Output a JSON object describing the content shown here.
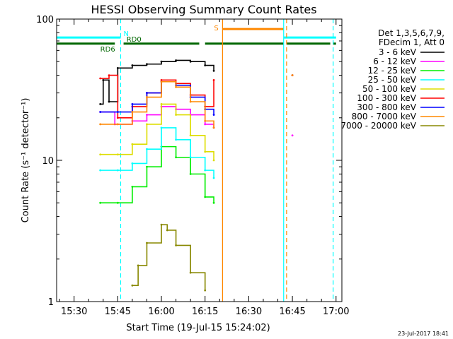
{
  "chart_data": {
    "type": "line",
    "title": "HESSI Observing Summary Count Rates",
    "xlabel": "Start Time (19-Jul-15 15:24:02)",
    "ylabel": "Count Rate (s⁻¹ detector⁻¹)",
    "y_scale": "log",
    "ylim": [
      1,
      100
    ],
    "xlim": [
      "15:24",
      "17:02"
    ],
    "x_ticks": [
      "15:30",
      "15:45",
      "16:00",
      "16:15",
      "16:30",
      "16:45",
      "17:00"
    ],
    "y_ticks": [
      "1",
      "10",
      "100"
    ],
    "grid": false,
    "legend_position": "right",
    "legend_header": [
      "Det 1,3,5,6,7,9,",
      "FDecim 1, Att 0"
    ],
    "timestamp": "23-Jul-2017 18:41",
    "series": [
      {
        "name": "3 - 6 keV",
        "color": "#000000",
        "x": [
          "15:39",
          "15:40",
          "15:42",
          "15:45",
          "15:50",
          "15:55",
          "16:00",
          "16:05",
          "16:10",
          "16:15",
          "16:18",
          "16:45"
        ],
        "y": [
          25,
          37,
          26,
          45,
          47,
          48,
          50,
          51,
          50,
          47,
          43,
          40
        ]
      },
      {
        "name": "6 - 12 keV",
        "color": "#ff00ff",
        "x": [
          "15:39",
          "15:44",
          "15:50",
          "15:55",
          "16:00",
          "16:05",
          "16:10",
          "16:15",
          "16:18",
          "16:45"
        ],
        "y": [
          22,
          18,
          19,
          21,
          24,
          23,
          21,
          18,
          17,
          15
        ]
      },
      {
        "name": "12 - 25 keV",
        "color": "#00ee00",
        "x": [
          "15:39",
          "15:45",
          "15:50",
          "15:55",
          "16:00",
          "16:05",
          "16:10",
          "16:15",
          "16:18"
        ],
        "y": [
          5.0,
          5.0,
          6.5,
          9.0,
          12.5,
          10.5,
          8.0,
          5.5,
          5.0
        ]
      },
      {
        "name": "25 - 50 keV",
        "color": "#00ffff",
        "x": [
          "15:39",
          "15:45",
          "15:50",
          "15:55",
          "16:00",
          "16:05",
          "16:10",
          "16:15",
          "16:18"
        ],
        "y": [
          8.5,
          8.5,
          9.5,
          12.0,
          17.0,
          14.0,
          10.5,
          8.5,
          7.5
        ]
      },
      {
        "name": "50 - 100 keV",
        "color": "#dddd00",
        "x": [
          "15:39",
          "15:45",
          "15:50",
          "15:55",
          "16:00",
          "16:05",
          "16:10",
          "16:15",
          "16:18"
        ],
        "y": [
          11.0,
          11.0,
          13.0,
          18.0,
          25.0,
          21.0,
          15.0,
          11.5,
          10.0
        ]
      },
      {
        "name": "100 - 300 keV",
        "color": "#ff0000",
        "x": [
          "15:39",
          "15:42",
          "15:45",
          "15:50",
          "15:55",
          "16:00",
          "16:05",
          "16:10",
          "16:15",
          "16:18",
          "16:45"
        ],
        "y": [
          38,
          40,
          20,
          24,
          30,
          37,
          35,
          29,
          24,
          37,
          40
        ]
      },
      {
        "name": "300 - 800 keV",
        "color": "#0000ff",
        "x": [
          "15:39",
          "15:45",
          "15:50",
          "15:55",
          "16:00",
          "16:05",
          "16:10",
          "16:15",
          "16:18"
        ],
        "y": [
          22,
          22,
          25,
          30,
          36,
          34,
          28,
          23,
          21
        ]
      },
      {
        "name": "800 - 7000 keV",
        "color": "#ff8800",
        "x": [
          "15:39",
          "15:45",
          "15:50",
          "15:55",
          "16:00",
          "16:05",
          "16:10",
          "16:15",
          "16:18",
          "16:45"
        ],
        "y": [
          18,
          18,
          22,
          28,
          36,
          33,
          26,
          19,
          17,
          40
        ]
      },
      {
        "name": "7000 - 20000 keV",
        "color": "#888800",
        "x": [
          "15:50",
          "15:52",
          "15:55",
          "16:00",
          "16:02",
          "16:05",
          "16:10",
          "16:15"
        ],
        "y": [
          1.3,
          1.8,
          2.6,
          3.5,
          3.2,
          2.5,
          1.6,
          1.2
        ]
      }
    ],
    "flag_bars": [
      {
        "label": "N",
        "color": "#00ffff",
        "y": 74,
        "ranges": [
          [
            "15:24",
            "15:46"
          ],
          [
            "16:42",
            "17:00"
          ]
        ]
      },
      {
        "label": "S",
        "color": "#ff8800",
        "y": 85,
        "ranges": [
          [
            "16:21",
            "16:42"
          ]
        ]
      },
      {
        "label": "RD6",
        "color": "#006600",
        "y": 67,
        "ranges": [
          [
            "15:24",
            "15:44"
          ],
          [
            "15:47",
            "16:13"
          ],
          [
            "16:15",
            "16:42"
          ],
          [
            "16:43",
            "16:58"
          ],
          [
            "16:59",
            "17:00"
          ]
        ]
      },
      {
        "label": "RD0",
        "color": "#006600",
        "y": 0,
        "ranges": []
      }
    ],
    "vlines": [
      {
        "x": "15:46",
        "color": "#00ffff",
        "style": "dashed"
      },
      {
        "x": "16:21",
        "color": "#ff8800",
        "style": "solid"
      },
      {
        "x": "16:42",
        "color": "#00ffff",
        "style": "solid"
      },
      {
        "x": "16:43",
        "color": "#ff8800",
        "style": "dashed"
      },
      {
        "x": "16:59",
        "color": "#00ffff",
        "style": "dashed"
      }
    ]
  }
}
